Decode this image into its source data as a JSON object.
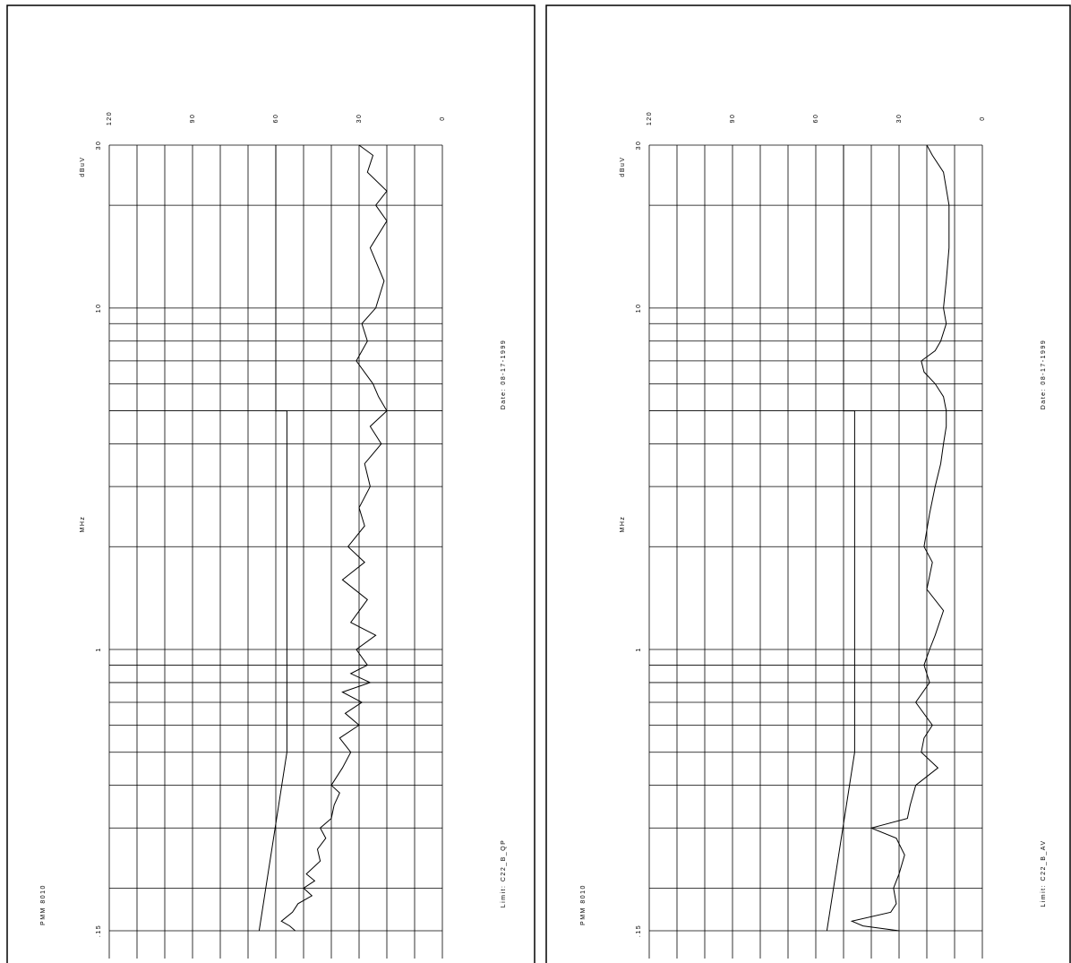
{
  "chart_data": [
    {
      "type": "line",
      "unit_label": "dBuV",
      "x_label": "MHz",
      "device": "PMM 8010",
      "date": "Date: 08-17-1999",
      "limit_label": "Limit: C22_B_QP",
      "xlim": [
        0.15,
        30
      ],
      "xticks": [
        {
          "value": 0.15,
          "label": ".15"
        },
        1,
        10,
        30
      ],
      "xgrid": [
        0.15,
        0.2,
        0.3,
        0.4,
        0.5,
        0.6,
        0.7,
        0.8,
        0.9,
        1,
        2,
        3,
        4,
        5,
        6,
        7,
        8,
        9,
        10,
        20,
        30
      ],
      "ylim": [
        0,
        120
      ],
      "yticks": [
        120,
        90,
        60,
        30,
        0
      ],
      "ygrid": [
        0,
        10,
        20,
        30,
        40,
        50,
        60,
        70,
        80,
        90,
        100,
        110,
        120
      ],
      "color": "#000000",
      "x": [
        0.15,
        0.155,
        0.16,
        0.17,
        0.18,
        0.19,
        0.2,
        0.21,
        0.22,
        0.24,
        0.26,
        0.28,
        0.3,
        0.32,
        0.35,
        0.38,
        0.4,
        0.45,
        0.5,
        0.55,
        0.6,
        0.65,
        0.7,
        0.75,
        0.8,
        0.85,
        0.9,
        1,
        1.1,
        1.2,
        1.4,
        1.6,
        1.8,
        2,
        2.3,
        2.6,
        3,
        3.5,
        4,
        4.5,
        5,
        5.5,
        6,
        7,
        8,
        9,
        10,
        12,
        15,
        18,
        20,
        22,
        25,
        28,
        30
      ],
      "values": [
        53,
        55,
        58,
        54,
        52,
        47,
        50,
        46,
        49,
        44,
        45,
        42,
        44,
        40,
        39,
        37,
        40,
        36,
        33,
        37,
        30,
        35,
        29,
        36,
        26,
        33,
        27,
        31,
        24,
        33,
        27,
        36,
        28,
        34,
        28,
        30,
        26,
        28,
        22,
        26,
        20,
        23,
        25,
        31,
        27,
        29,
        24,
        21,
        26,
        20,
        24,
        20,
        27,
        25,
        30
      ],
      "limit_x": [
        0.15,
        0.5,
        5,
        5,
        30
      ],
      "limit_values": [
        66,
        56,
        56,
        60,
        60
      ]
    },
    {
      "type": "line",
      "unit_label": "dBuV",
      "x_label": "MHz",
      "device": "PMM 8010",
      "date": "Date: 08-17-1999",
      "limit_label": "Limit: C22_B_AV",
      "xlim": [
        0.15,
        30
      ],
      "xticks": [
        {
          "value": 0.15,
          "label": ".15"
        },
        1,
        10,
        30
      ],
      "xgrid": [
        0.15,
        0.2,
        0.3,
        0.4,
        0.5,
        0.6,
        0.7,
        0.8,
        0.9,
        1,
        2,
        3,
        4,
        5,
        6,
        7,
        8,
        9,
        10,
        20,
        30
      ],
      "ylim": [
        0,
        120
      ],
      "yticks": [
        120,
        90,
        60,
        30,
        0
      ],
      "ygrid": [
        0,
        10,
        20,
        30,
        40,
        50,
        60,
        70,
        80,
        90,
        100,
        110,
        120
      ],
      "color": "#000000",
      "x": [
        0.15,
        0.155,
        0.16,
        0.17,
        0.18,
        0.2,
        0.22,
        0.25,
        0.28,
        0.3,
        0.32,
        0.35,
        0.4,
        0.45,
        0.5,
        0.55,
        0.6,
        0.7,
        0.8,
        0.9,
        1,
        1.1,
        1.3,
        1.5,
        1.8,
        2,
        2.5,
        3,
        3.5,
        4,
        4.5,
        5,
        5.5,
        6,
        6.5,
        7,
        7.5,
        8,
        9,
        10,
        12,
        15,
        20,
        25,
        28,
        30
      ],
      "values": [
        30,
        43,
        47,
        33,
        31,
        32,
        30,
        28,
        31,
        40,
        27,
        26,
        24,
        16,
        22,
        21,
        18,
        24,
        19,
        21,
        19,
        17,
        14,
        20,
        18,
        21,
        19,
        17,
        15,
        14,
        13,
        13,
        14,
        17,
        21,
        22,
        17,
        15,
        13,
        14,
        13,
        12,
        12,
        14,
        18,
        20
      ],
      "limit_x": [
        0.15,
        0.5,
        5,
        5,
        30
      ],
      "limit_values": [
        56,
        46,
        46,
        50,
        50
      ]
    }
  ]
}
